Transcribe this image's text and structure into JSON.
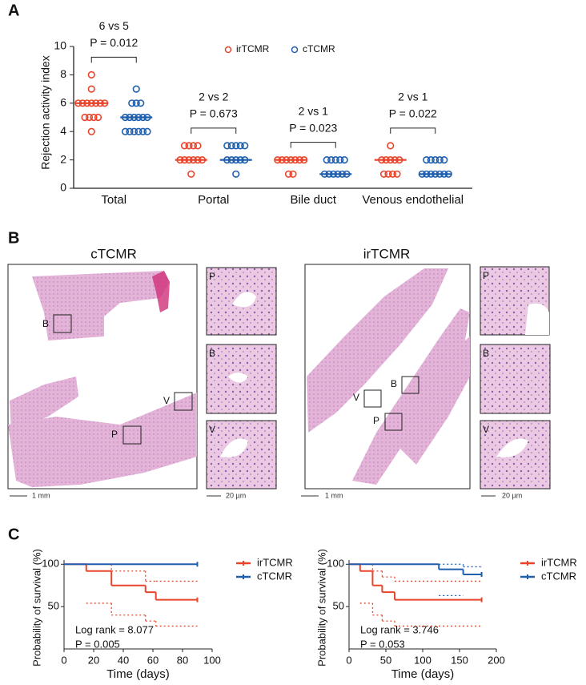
{
  "panel_labels": [
    "A",
    "B",
    "C"
  ],
  "chart_data": [
    {
      "type": "strip",
      "ylabel": "Rejection activity index",
      "categories": [
        "Total",
        "Portal",
        "Bile duct",
        "Venous endothelial"
      ],
      "ylim": [
        0,
        10
      ],
      "yticks": [
        0,
        2,
        4,
        6,
        8,
        10
      ],
      "legend": "top",
      "series": [
        {
          "name": "irTCMR",
          "color": "#e8452c",
          "values": [
            [
              8,
              7,
              6,
              6,
              6,
              6,
              6,
              6,
              6,
              5,
              5,
              5,
              5,
              4
            ],
            [
              3,
              3,
              3,
              3,
              2,
              2,
              2,
              2,
              2,
              2,
              1
            ],
            [
              2,
              2,
              2,
              2,
              2,
              2,
              2,
              1,
              1
            ],
            [
              3,
              2,
              2,
              2,
              2,
              2,
              1,
              1,
              1,
              1
            ]
          ],
          "medians": [
            6,
            2,
            2,
            2
          ]
        },
        {
          "name": "cTCMR",
          "color": "#1f5fad",
          "values": [
            [
              7,
              6,
              6,
              6,
              5,
              5,
              5,
              5,
              5,
              5,
              4,
              4,
              4,
              4,
              4,
              4
            ],
            [
              3,
              3,
              3,
              3,
              3,
              2,
              2,
              2,
              2,
              2,
              1
            ],
            [
              2,
              2,
              2,
              2,
              2,
              1,
              1,
              1,
              1,
              1,
              1
            ],
            [
              2,
              2,
              2,
              2,
              2,
              1,
              1,
              1,
              1,
              1,
              1,
              1
            ]
          ],
          "medians": [
            5,
            2,
            1,
            1
          ]
        }
      ],
      "annotations": [
        {
          "text": "6 vs 5",
          "p": "P = 0.012"
        },
        {
          "text": "2 vs 2",
          "p": "P = 0.673"
        },
        {
          "text": "2 vs 1",
          "p": "P = 0.023"
        },
        {
          "text": "2 vs 1",
          "p": "P = 0.022"
        }
      ]
    },
    {
      "type": "survival",
      "xlabel": "Time (days)",
      "ylabel": "Probability of survival (%)",
      "xlim": [
        0,
        100
      ],
      "xticks": [
        0,
        20,
        40,
        60,
        80,
        100
      ],
      "ylim": [
        0,
        105
      ],
      "yticks": [
        50,
        100
      ],
      "legend": "outside right",
      "series": [
        {
          "name": "irTCMR",
          "color": "#e8452c",
          "x": [
            0,
            15,
            32,
            55,
            62,
            90
          ],
          "values": [
            100,
            92,
            75,
            67,
            58,
            58
          ],
          "ci_upper": [
            null,
            100,
            92,
            80,
            80,
            80
          ],
          "ci_lower": [
            null,
            54,
            40,
            33,
            27,
            27
          ]
        },
        {
          "name": "cTCMR",
          "color": "#1f5fad",
          "x": [
            0,
            90
          ],
          "values": [
            100,
            100
          ]
        }
      ],
      "annotations": [
        "Log rank = 8.077",
        "P = 0.005"
      ]
    },
    {
      "type": "survival",
      "xlabel": "Time (days)",
      "ylabel": "Probability of survival (%)",
      "xlim": [
        0,
        200
      ],
      "xticks": [
        0,
        50,
        100,
        150,
        200
      ],
      "ylim": [
        0,
        105
      ],
      "yticks": [
        50,
        100
      ],
      "legend": "outside right",
      "series": [
        {
          "name": "irTCMR",
          "color": "#e8452c",
          "x": [
            0,
            15,
            32,
            45,
            62,
            180
          ],
          "values": [
            100,
            92,
            75,
            67,
            58,
            58
          ],
          "ci_upper": [
            null,
            100,
            92,
            85,
            80,
            80
          ],
          "ci_lower": [
            null,
            54,
            40,
            33,
            27,
            27
          ]
        },
        {
          "name": "cTCMR",
          "color": "#1f5fad",
          "x": [
            0,
            122,
            155,
            180
          ],
          "values": [
            100,
            94,
            88,
            88
          ],
          "ci_upper": [
            null,
            100,
            97,
            97
          ],
          "ci_lower": [
            null,
            63,
            null,
            null
          ]
        }
      ],
      "annotations": [
        "Log rank = 3.746",
        "P = 0.053"
      ]
    }
  ],
  "histology": {
    "groups": [
      {
        "title": "cTCMR",
        "regions": [
          "B",
          "V",
          "P"
        ],
        "insets": [
          "P",
          "B",
          "V"
        ],
        "scale_overview": "1 mm",
        "scale_inset": "20 µm"
      },
      {
        "title": "irTCMR",
        "regions": [
          "V",
          "B",
          "P"
        ],
        "insets": [
          "P",
          "B",
          "V"
        ],
        "scale_overview": "1 mm",
        "scale_inset": "20 µm"
      }
    ]
  }
}
